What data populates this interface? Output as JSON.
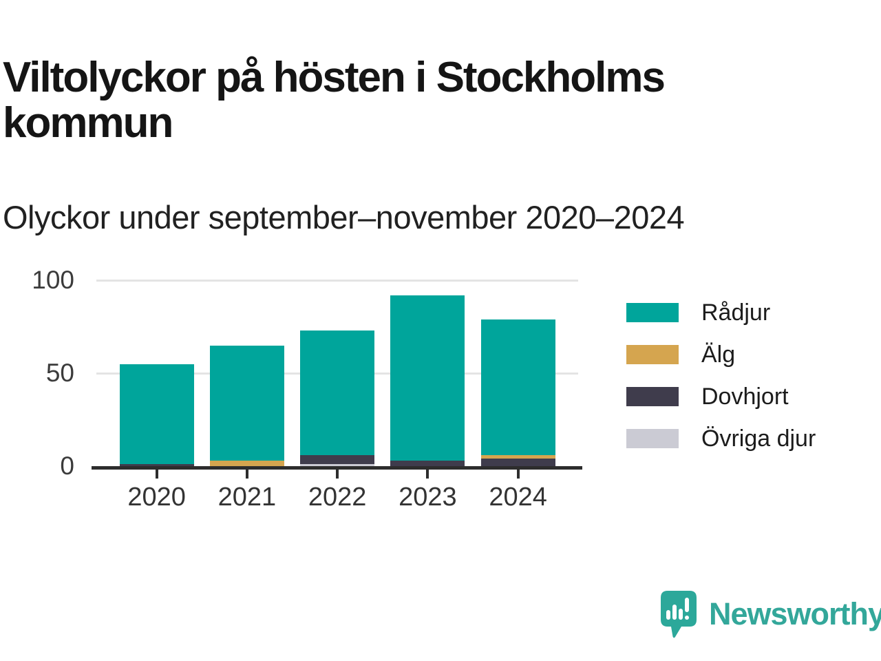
{
  "header": {
    "title": "Viltolyckor på hösten i Stockholms kommun",
    "subtitle": "Olyckor under september–november 2020–2024"
  },
  "chart_data": {
    "type": "bar",
    "stacked": true,
    "title": "Viltolyckor på hösten i Stockholms kommun",
    "subtitle": "Olyckor under september–november 2020–2024",
    "categories": [
      "2020",
      "2021",
      "2022",
      "2023",
      "2024"
    ],
    "series": [
      {
        "name": "Rådjur",
        "color": "#00a59b",
        "values": [
          54,
          62,
          67,
          89,
          73
        ]
      },
      {
        "name": "Älg",
        "color": "#d5a54f",
        "values": [
          0,
          3,
          0,
          0,
          2
        ]
      },
      {
        "name": "Dovhjort",
        "color": "#3f3c4c",
        "values": [
          1,
          0,
          5,
          3,
          4
        ]
      },
      {
        "name": "Övriga djur",
        "color": "#cbcbd4",
        "values": [
          0,
          0,
          1,
          0,
          0
        ]
      }
    ],
    "totals": [
      55,
      65,
      73,
      92,
      79
    ],
    "stack_order_bottom_to_top": [
      "Övriga djur",
      "Dovhjort",
      "Älg",
      "Rådjur"
    ],
    "ylim": [
      0,
      100
    ],
    "yticks": [
      0,
      50,
      100
    ],
    "grid": "horizontal",
    "legend_position": "right",
    "axis_color": "#2d2d2d",
    "gridline_color": "#e4e4e4"
  },
  "branding": {
    "logo_text": "Newsworthy",
    "logo_color": "#2ca89a"
  }
}
